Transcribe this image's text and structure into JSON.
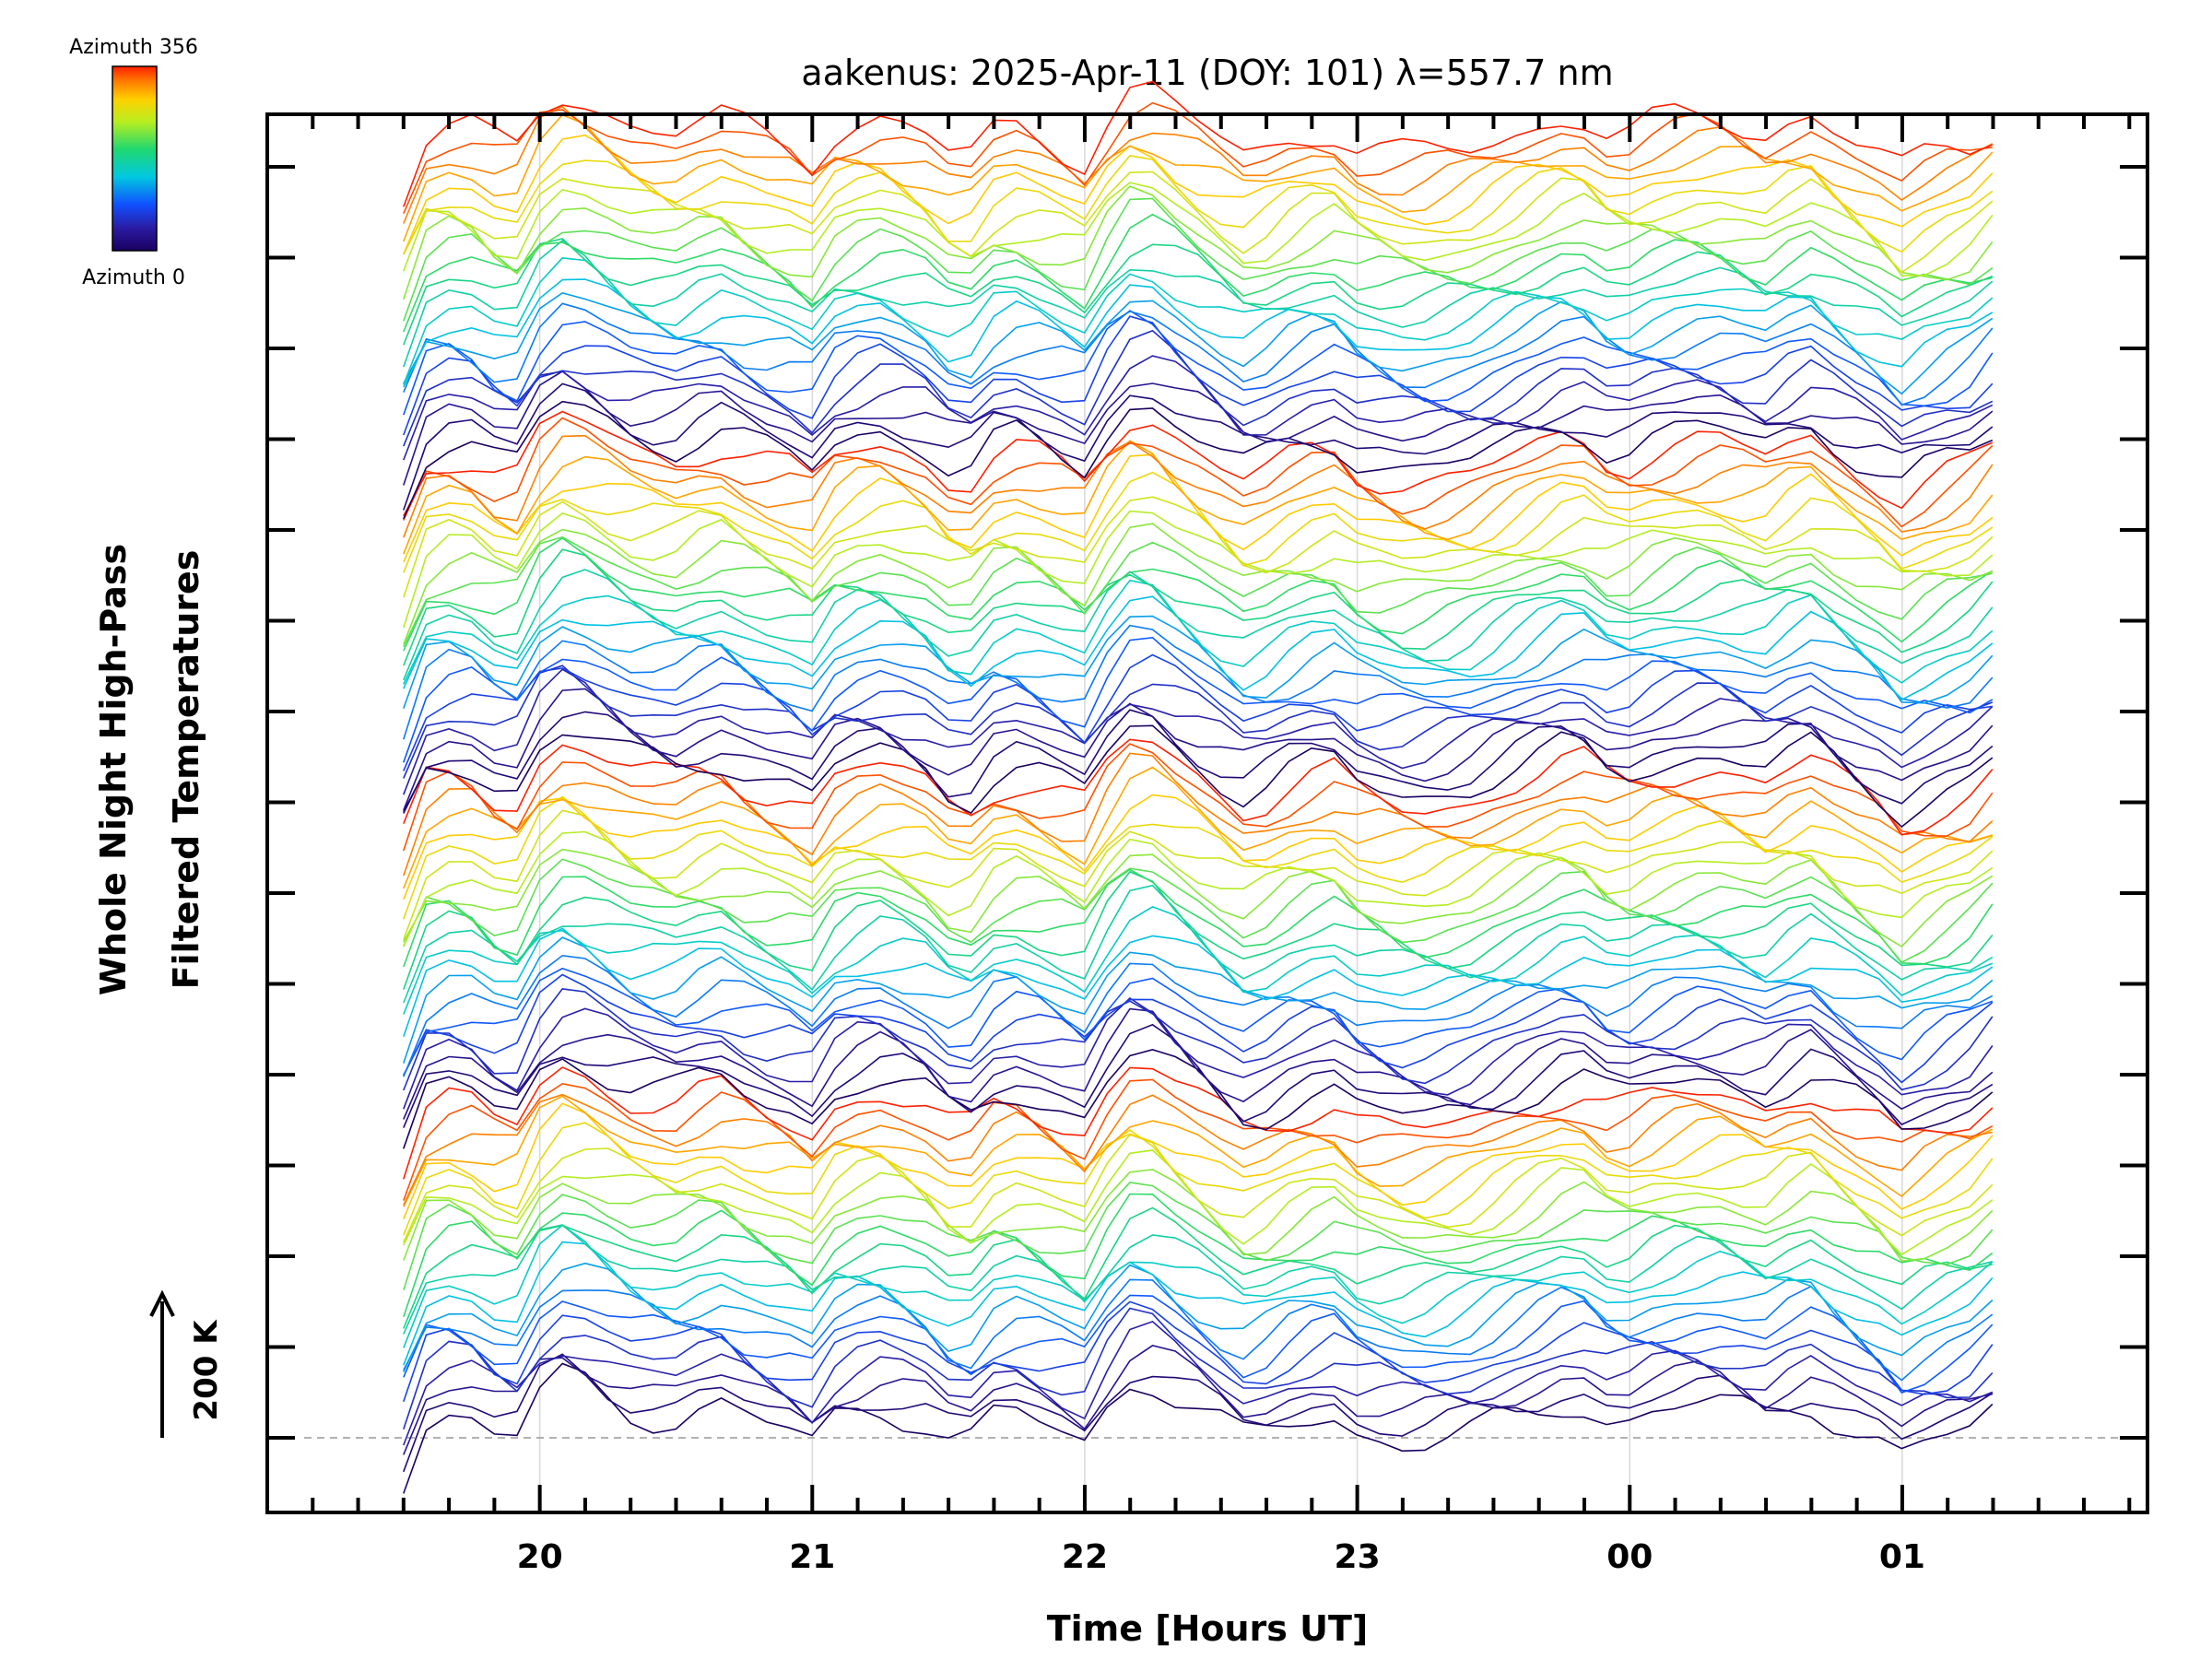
{
  "chart_data": {
    "type": "line",
    "title": "aakenus: 2025-Apr-11 (DOY: 101) λ=557.7 nm",
    "xlabel": "Time [Hours UT]",
    "ylabel_line1": "Whole Night High-Pass",
    "ylabel_line2": "Filtered Temperatures",
    "x_range_hours": [
      19.0,
      25.9
    ],
    "x_ticks": [
      {
        "hour": 20,
        "label": "20"
      },
      {
        "hour": 21,
        "label": "21"
      },
      {
        "hour": 22,
        "label": "22"
      },
      {
        "hour": 23,
        "label": "23"
      },
      {
        "hour": 24,
        "label": "00"
      },
      {
        "hour": 25,
        "label": "01"
      }
    ],
    "data_start_hour": 19.5,
    "data_end_hour": 25.4,
    "n_series": 96,
    "baseline_dashed": true,
    "scale_bar": {
      "label": "200 K",
      "value_K": 200
    },
    "colorbar": {
      "top_label": "Azimuth 356",
      "bottom_label": "Azimuth 0",
      "min_azimuth": 0,
      "max_azimuth": 356,
      "colormap": "rainbow"
    },
    "profile_hours": [
      19.5,
      19.6,
      19.75,
      19.9,
      20.0,
      20.1,
      20.2,
      20.35,
      20.5,
      20.65,
      20.8,
      20.9,
      21.0,
      21.1,
      21.25,
      21.4,
      21.55,
      21.7,
      21.85,
      22.0,
      22.1,
      22.2,
      22.3,
      22.45,
      22.6,
      22.75,
      22.9,
      23.0,
      23.2,
      23.4,
      23.6,
      23.8,
      23.95,
      24.1,
      24.3,
      24.5,
      24.65,
      24.8,
      24.9,
      25.0,
      25.1,
      25.25,
      25.4
    ],
    "profile_values_K": [
      -60,
      40,
      30,
      -10,
      60,
      90,
      70,
      40,
      30,
      50,
      20,
      10,
      -10,
      40,
      50,
      30,
      -20,
      40,
      20,
      -5,
      60,
      100,
      70,
      30,
      -10,
      20,
      40,
      10,
      -10,
      0,
      30,
      60,
      20,
      40,
      50,
      30,
      60,
      20,
      0,
      -30,
      -10,
      10,
      60
    ]
  }
}
